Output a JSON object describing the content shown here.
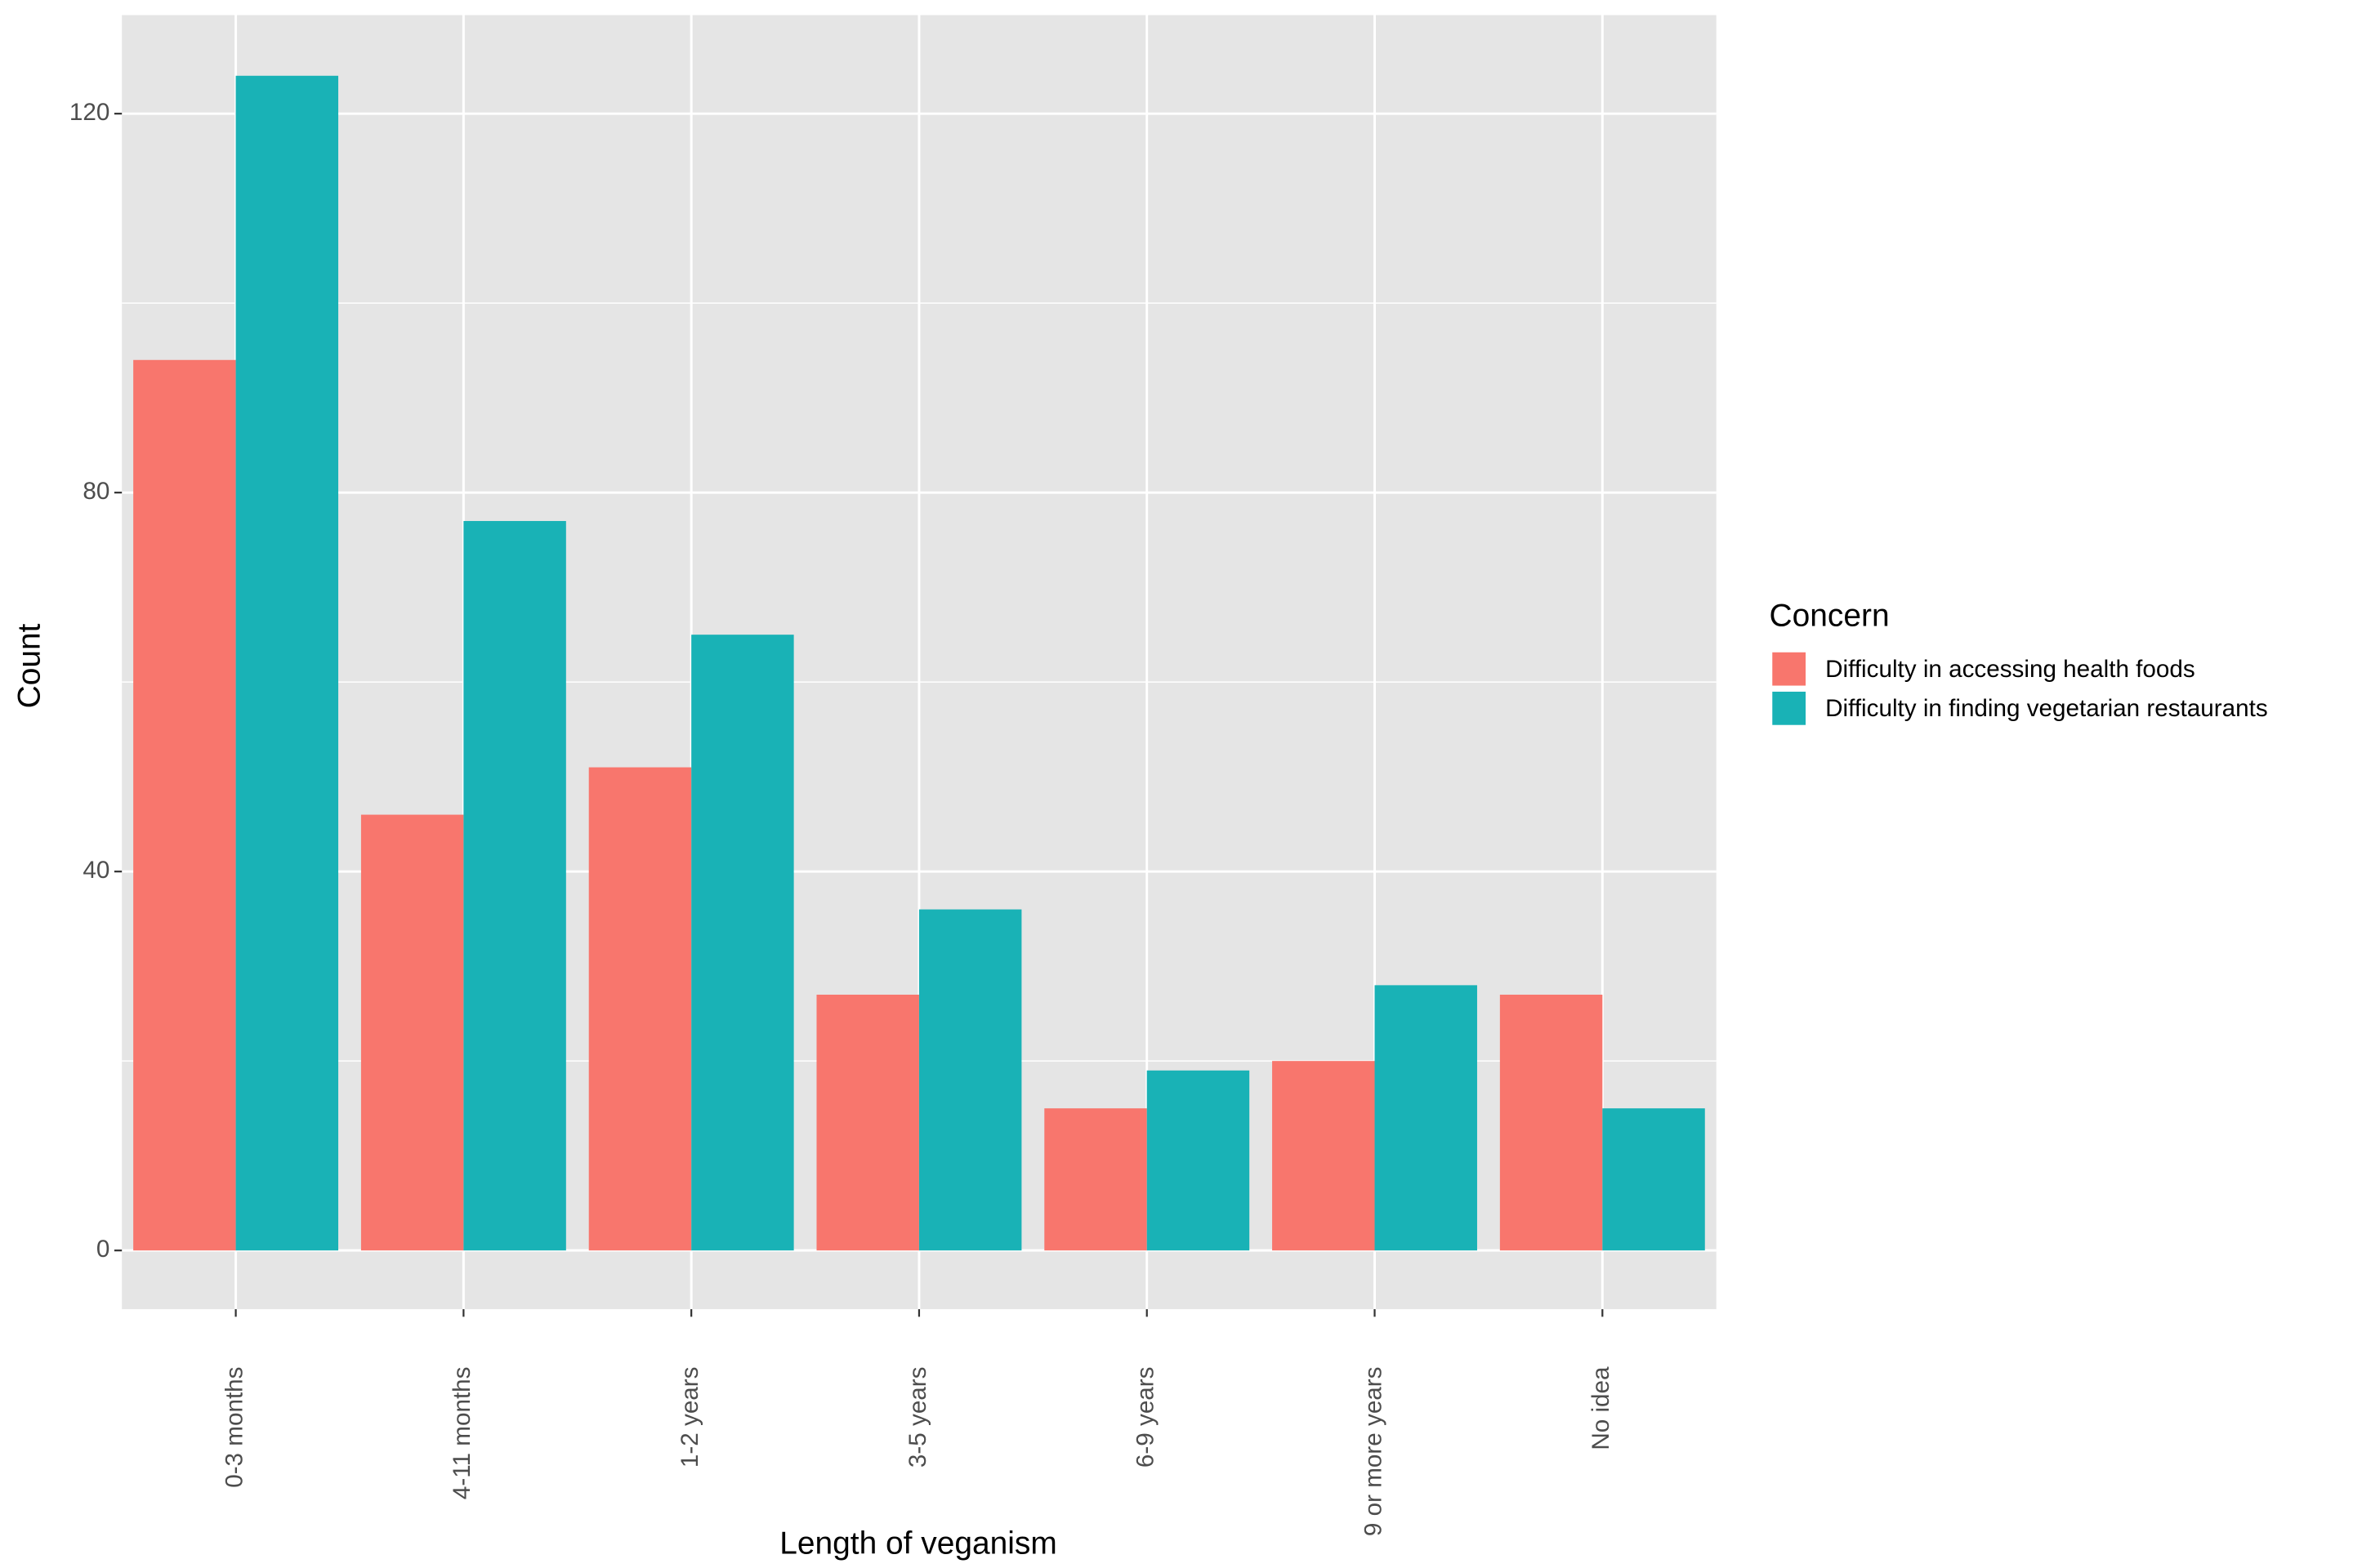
{
  "chart_data": {
    "type": "bar",
    "x_label": "Length of veganism",
    "y_label": "Count",
    "legend_title": "Concern",
    "legend_position": "right",
    "categories": [
      "0-3 months",
      "4-11 months",
      "1-2 years",
      "3-5 years",
      "6-9 years",
      "9 or more years",
      "No idea"
    ],
    "series": [
      {
        "name": "Difficulty in accessing health foods",
        "color": "#f8766d",
        "values": [
          94,
          46,
          51,
          27,
          15,
          20,
          27
        ]
      },
      {
        "name": "Difficulty in finding vegetarian restaurants",
        "color": "#19b2b6",
        "values": [
          124,
          77,
          65,
          36,
          19,
          28,
          15
        ]
      }
    ],
    "ylim": [
      -6.2,
      130.4
    ],
    "yticks": [
      0,
      40,
      80,
      120
    ],
    "yminorticks": [
      20,
      60,
      100
    ],
    "grid": true
  }
}
